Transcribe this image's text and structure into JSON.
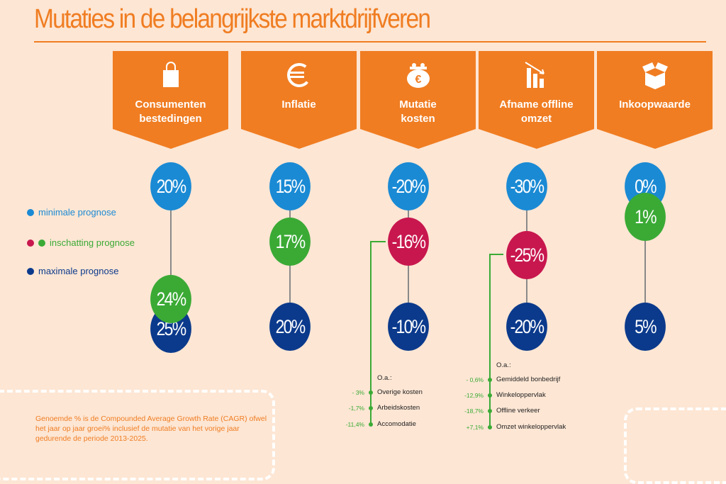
{
  "title": "Mutaties in de belangrijkste marktdrijfveren",
  "legend": [
    {
      "label": "minimale prognose",
      "colors": [
        "#1a8ad4"
      ]
    },
    {
      "label": "inschatting prognose",
      "colors": [
        "#c8174e",
        "#3aaa35"
      ]
    },
    {
      "label": "maximale prognose",
      "colors": [
        "#0b3a8c"
      ]
    }
  ],
  "columns": [
    {
      "label": "Consumenten bestedingen",
      "icon": "shopping-bag-icon",
      "min": "20%",
      "estimate": "24%",
      "estimate_color": "green",
      "max": "25%"
    },
    {
      "label": "Inflatie",
      "icon": "euro-icon",
      "min": "15%",
      "estimate": "17%",
      "estimate_color": "green",
      "max": "20%"
    },
    {
      "label": "Mutatie kosten",
      "icon": "purse-euro-icon",
      "min": "-20%",
      "estimate": "-16%",
      "estimate_color": "red",
      "max": "-10%"
    },
    {
      "label": "Afname offline omzet",
      "icon": "declining-bars-icon",
      "min": "-30%",
      "estimate": "-25%",
      "estimate_color": "red",
      "max": "-20%"
    },
    {
      "label": "Inkoopwaarde",
      "icon": "open-box-icon",
      "min": "0%",
      "estimate": "1%",
      "estimate_color": "green",
      "max": "5%"
    }
  ],
  "breakdown_kosten": {
    "heading": "O.a.:",
    "items": [
      {
        "value": "- 3%",
        "label": "Overige kosten"
      },
      {
        "value": "-1,7%",
        "label": "Arbeidskosten"
      },
      {
        "value": "-11,4%",
        "label": "Accomodatie"
      }
    ]
  },
  "breakdown_omzet": {
    "heading": "O.a.:",
    "items": [
      {
        "value": "- 0,6%",
        "label": "Gemiddeld bonbedrijf"
      },
      {
        "value": "-12,9%",
        "label": "Winkeloppervlak"
      },
      {
        "value": "-18,7%",
        "label": "Offline verkeer"
      },
      {
        "value": "+7,1%",
        "label": "Omzet winkeloppervlak"
      }
    ]
  },
  "footnote": "Genoemde % is de Compounded Average Growth Rate (CAGR) ofwel het jaar op jaar groei% inclusief de mutatie van het vorige jaar gedurende de periode 2013-2025."
}
